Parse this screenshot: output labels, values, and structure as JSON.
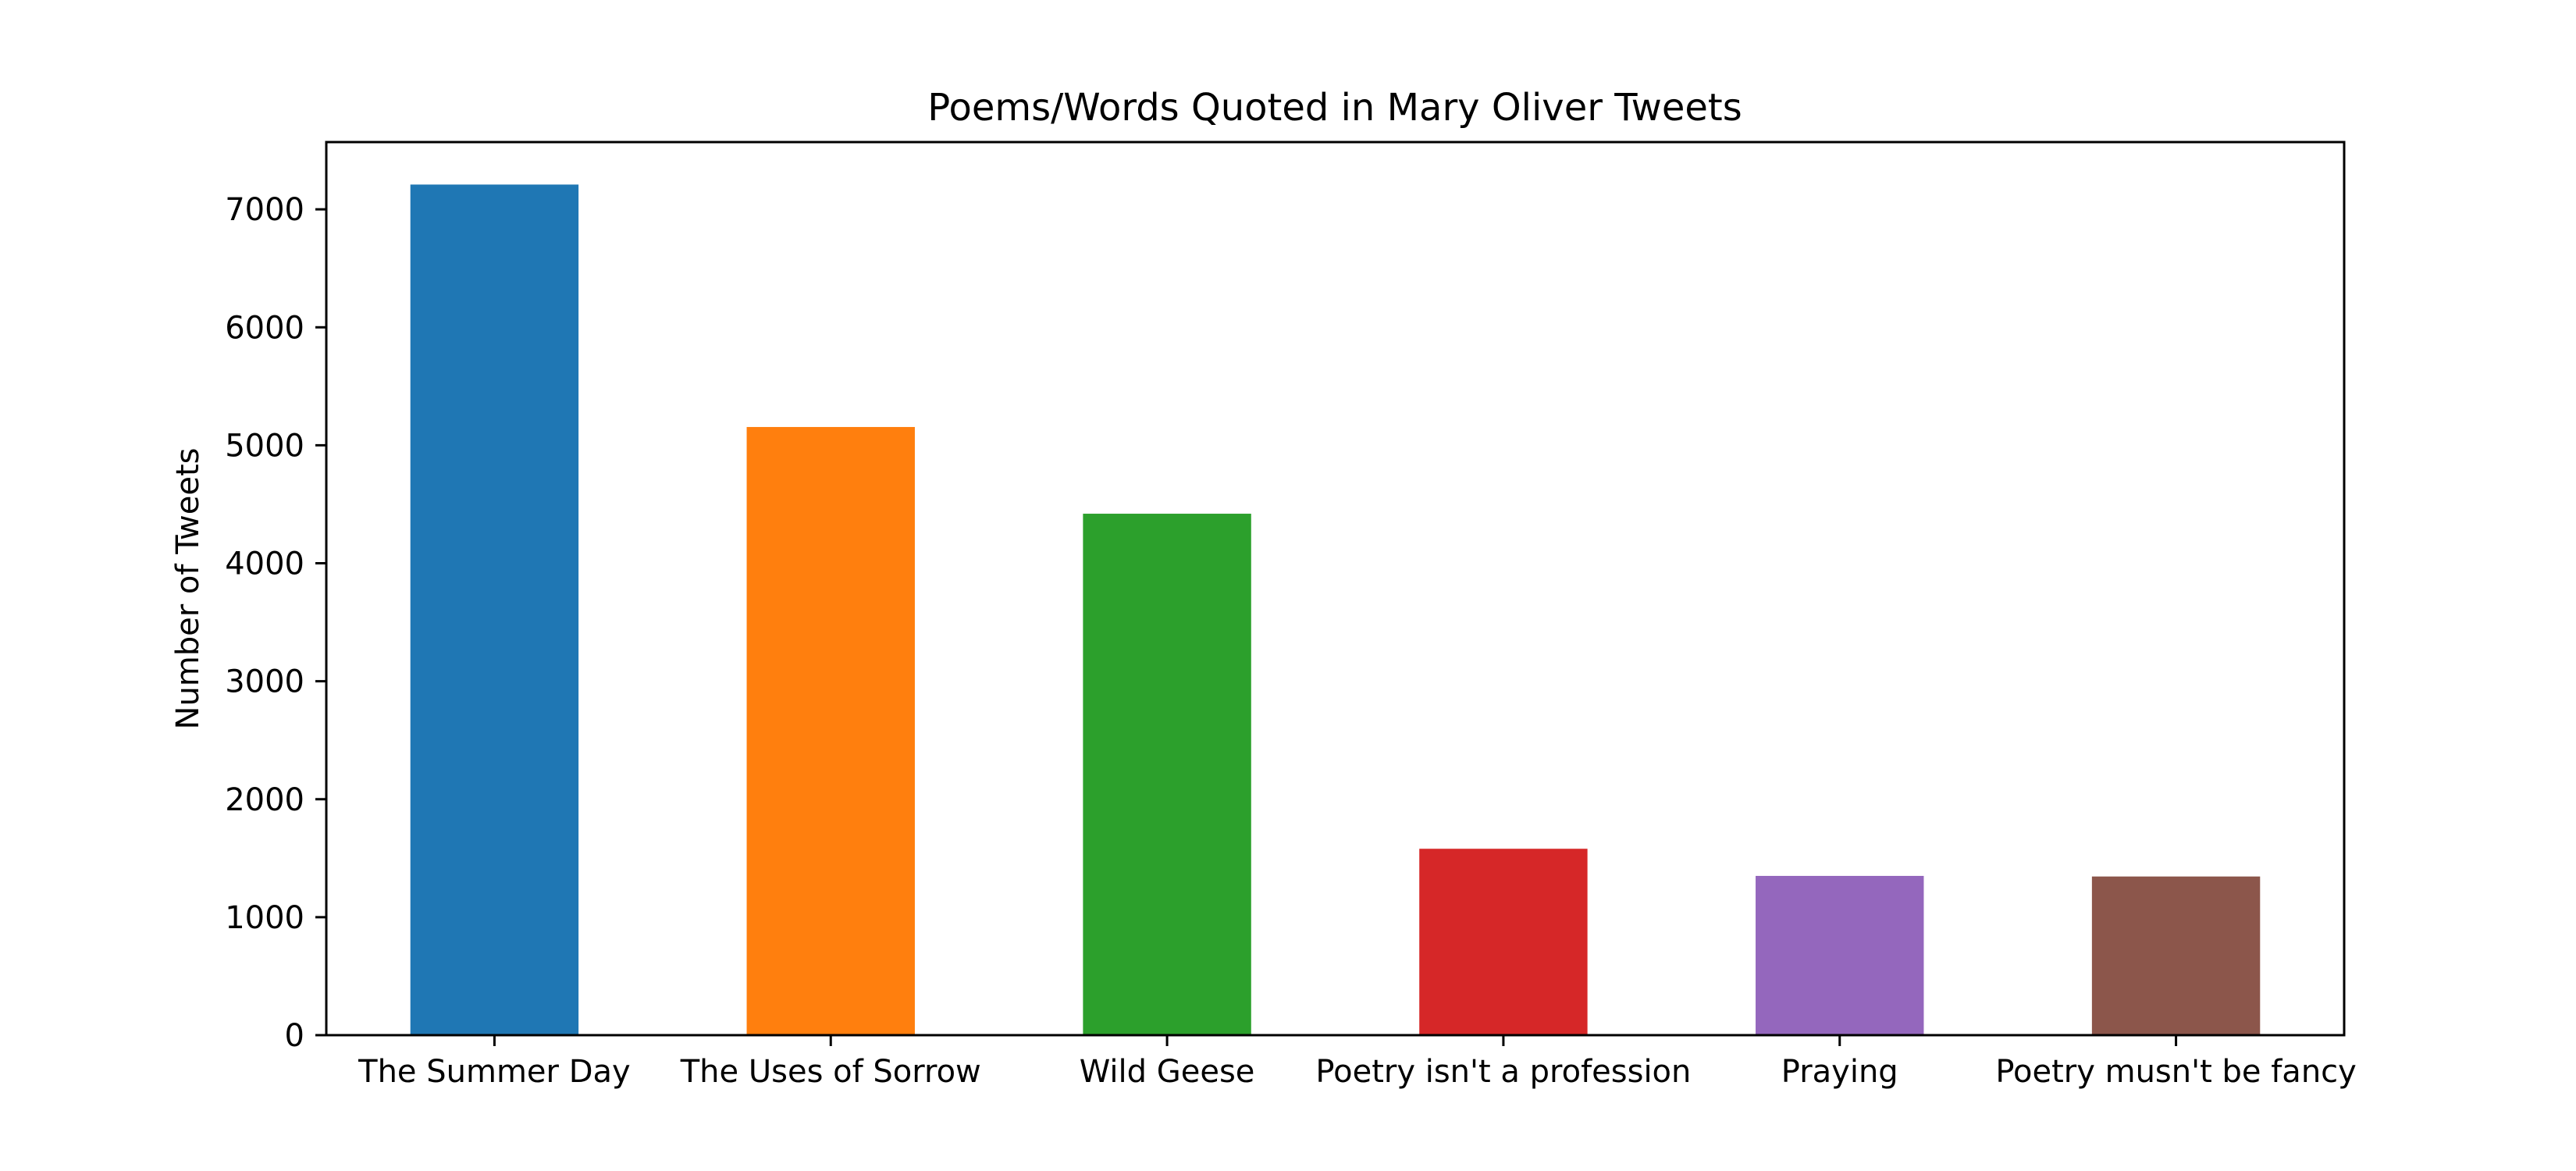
{
  "chart_data": {
    "type": "bar",
    "title": "Poems/Words Quoted in Mary Oliver Tweets",
    "xlabel": "",
    "ylabel": "Number of Tweets",
    "categories": [
      "The Summer Day",
      "The Uses of Sorrow",
      "Wild Geese",
      "Poetry isn't a profession",
      "Praying",
      "Poetry musn't be fancy"
    ],
    "values": [
      7210,
      5155,
      4420,
      1580,
      1350,
      1345
    ],
    "colors": [
      "#1f77b4",
      "#ff7f0e",
      "#2ca02c",
      "#d62728",
      "#9467bd",
      "#8c564b"
    ],
    "ylim": [
      0,
      7570
    ],
    "yticks": [
      0,
      1000,
      2000,
      3000,
      4000,
      5000,
      6000,
      7000
    ],
    "grid": false,
    "legend": "none"
  }
}
